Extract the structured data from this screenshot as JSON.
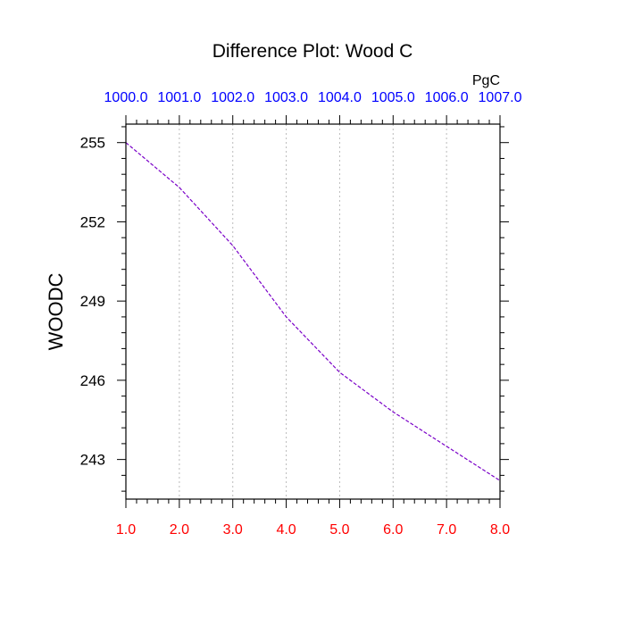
{
  "chart_data": {
    "type": "line",
    "title": "Difference Plot: Wood C",
    "ylabel": "WOODC",
    "units": "PgC",
    "x": [
      1,
      2,
      3,
      4,
      5,
      6,
      7,
      8
    ],
    "xlim": [
      1,
      8
    ],
    "ylim": [
      241.5,
      255.7
    ],
    "x_ticks": [
      1,
      2,
      3,
      4,
      5,
      6,
      7,
      8
    ],
    "x_tick_labels": [
      "1.0",
      "2.0",
      "3.0",
      "4.0",
      "5.0",
      "6.0",
      "7.0",
      "8.0"
    ],
    "top_tick_labels": [
      "1000.0",
      "1001.0",
      "1002.0",
      "1003.0",
      "1004.0",
      "1005.0",
      "1006.0",
      "1007.0"
    ],
    "y_ticks": [
      243,
      246,
      249,
      252,
      255
    ],
    "y_tick_labels": [
      "243",
      "246",
      "249",
      "252",
      "255"
    ],
    "series": [
      {
        "values": [
          255.0,
          253.3,
          251.1,
          248.4,
          246.3,
          244.8,
          243.5,
          242.2
        ],
        "color": "#7a00c8",
        "dash": "dashed"
      }
    ],
    "grid": "vertical dotted",
    "colors": {
      "bottom_tick_labels": "#ff0000",
      "top_tick_labels": "#0000ff",
      "axis": "#000000",
      "grid": "#bbbbbb"
    }
  }
}
